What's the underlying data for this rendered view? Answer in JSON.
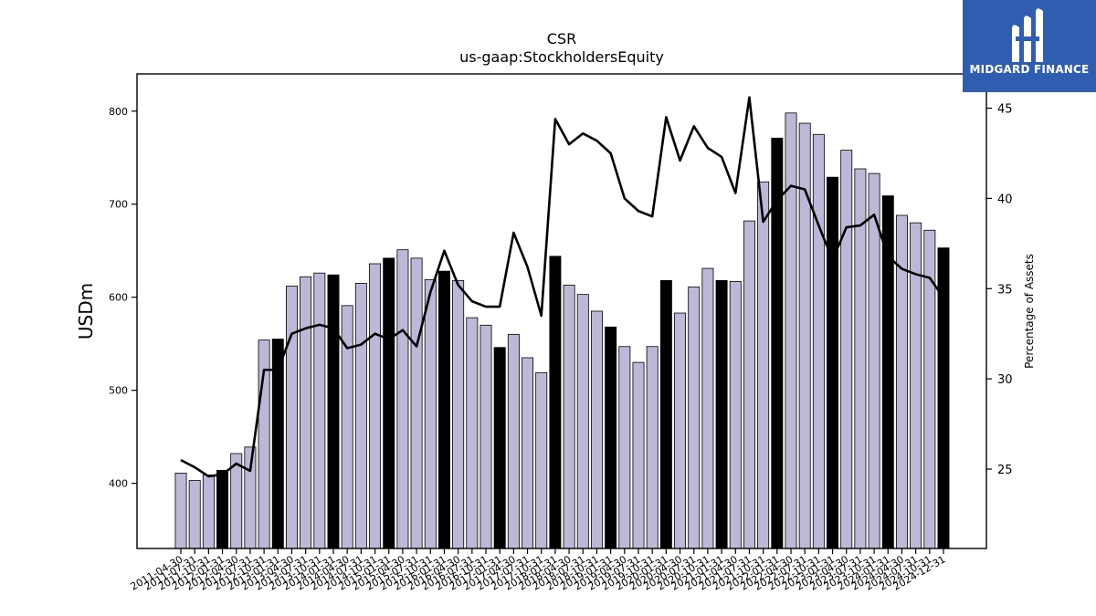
{
  "chart_data": {
    "type": "bar",
    "title": "CSR",
    "subtitle": "us-gaap:StockholdersEquity",
    "ylabel": "USDm",
    "y2label": "Percentage of Assets",
    "ylim": [
      330,
      840
    ],
    "y2lim": [
      20.6,
      46.9
    ],
    "yticks": [
      400,
      500,
      600,
      700,
      800
    ],
    "y2ticks": [
      25,
      30,
      35,
      40,
      45
    ],
    "bar_color": "#bcb9d8",
    "highlight_color": "#000000",
    "line_color": "#000000",
    "categories": [
      "2011-04-30",
      "2011-07-31",
      "2011-10-31",
      "2012-01-31",
      "2012-04-30",
      "2012-07-31",
      "2012-10-31",
      "2013-01-31",
      "2013-04-30",
      "2013-07-31",
      "2013-10-31",
      "2014-01-31",
      "2014-04-30",
      "2014-07-31",
      "2014-10-31",
      "2015-01-31",
      "2015-04-30",
      "2015-07-31",
      "2015-10-31",
      "2016-01-31",
      "2016-04-30",
      "2016-07-31",
      "2016-10-31",
      "2017-01-31",
      "2017-04-30",
      "2017-07-31",
      "2017-10-31",
      "2018-01-31",
      "2018-04-30",
      "2018-07-31",
      "2018-10-31",
      "2019-01-31",
      "2019-04-30",
      "2019-07-31",
      "2019-10-31",
      "2020-01-31",
      "2020-04-30",
      "2020-07-31",
      "2020-10-31",
      "2021-01-31",
      "2021-04-30",
      "2021-07-31",
      "2021-10-31",
      "2022-01-31",
      "2022-04-30",
      "2022-07-31",
      "2022-10-31",
      "2023-01-31",
      "2023-04-30",
      "2023-07-31",
      "2023-10-31",
      "2024-01-31",
      "2024-04-30",
      "2024-07-31",
      "2024-10-31",
      "2024-12-31"
    ],
    "tick_labels": [
      "2011-04-30",
      "2011-07-31",
      "2011-10-31",
      "2012-01-31",
      "2012-04-30",
      "2012-07-31",
      "2012-10-31",
      "2013-01-31",
      "2013-04-30",
      "2013-07-31",
      "2013-10-31",
      "2014-01-31",
      "2014-04-30",
      "2014-07-31",
      "2014-10-31",
      "2015-01-31",
      "2015-04-30",
      "2015-07-31",
      "2015-10-31",
      "2016-01-31",
      "2016-04-30",
      "2016-07-31",
      "2016-10-31",
      "2017-01-31",
      "2017-04-30",
      "2017-07-31",
      "2017-10-31",
      "2018-01-31",
      "2018-04-30",
      "2018-07-31",
      "2018-10-31",
      "2019-01-31",
      "2019-04-30",
      "2019-07-31",
      "2019-10-31",
      "2020-01-31",
      "2020-04-30",
      "2020-07-31",
      "2020-10-31",
      "2021-01-31",
      "2021-04-30",
      "2021-07-31",
      "2021-10-31",
      "2022-01-31",
      "2022-04-30",
      "2022-07-31",
      "2022-10-31",
      "2023-01-31",
      "2023-04-30",
      "2023-07-31",
      "2023-10-31",
      "2024-01-31",
      "2024-04-30",
      "2024-07-31",
      "2024-10-31",
      "2024-12-31"
    ],
    "series": [
      {
        "type": "bar",
        "values": [
          411,
          403,
          409,
          414,
          432,
          439,
          554,
          555,
          612,
          622,
          626,
          624,
          591,
          615,
          636,
          642,
          651,
          642,
          619,
          628,
          618,
          578,
          570,
          546,
          560,
          535,
          519,
          644,
          613,
          603,
          585,
          568,
          547,
          530,
          547,
          618,
          583,
          611,
          631,
          618,
          617,
          682,
          724,
          771,
          798,
          787,
          775,
          729,
          758,
          738,
          733,
          709,
          688,
          680,
          672,
          653
        ],
        "highlight": [
          false,
          false,
          false,
          true,
          false,
          false,
          false,
          true,
          false,
          false,
          false,
          true,
          false,
          false,
          false,
          true,
          false,
          false,
          false,
          true,
          false,
          false,
          false,
          true,
          false,
          false,
          false,
          true,
          false,
          false,
          false,
          true,
          false,
          false,
          false,
          true,
          false,
          false,
          false,
          true,
          false,
          false,
          false,
          true,
          false,
          false,
          false,
          true,
          false,
          false,
          false,
          true,
          false,
          false,
          false,
          true
        ]
      },
      {
        "type": "line",
        "axis": "right",
        "values": [
          25.5,
          25.1,
          24.6,
          24.7,
          25.3,
          24.9,
          30.5,
          30.5,
          32.5,
          32.8,
          33.0,
          32.8,
          31.7,
          31.9,
          32.5,
          32.2,
          32.7,
          31.8,
          34.8,
          37.1,
          35.2,
          34.3,
          34.0,
          34.0,
          38.1,
          36.2,
          33.5,
          44.4,
          43.0,
          43.6,
          43.2,
          42.5,
          40.0,
          39.3,
          39.0,
          44.5,
          42.1,
          44.0,
          42.8,
          42.3,
          40.3,
          45.6,
          38.7,
          39.9,
          40.7,
          40.5,
          38.5,
          36.6,
          38.4,
          38.5,
          39.1,
          36.8,
          36.1,
          35.8,
          35.6,
          34.5
        ]
      }
    ]
  },
  "logo": {
    "text": "MIDGARD FINANCE",
    "bg_color": "#2f5db0",
    "icon": "midgard-logo-icon"
  }
}
